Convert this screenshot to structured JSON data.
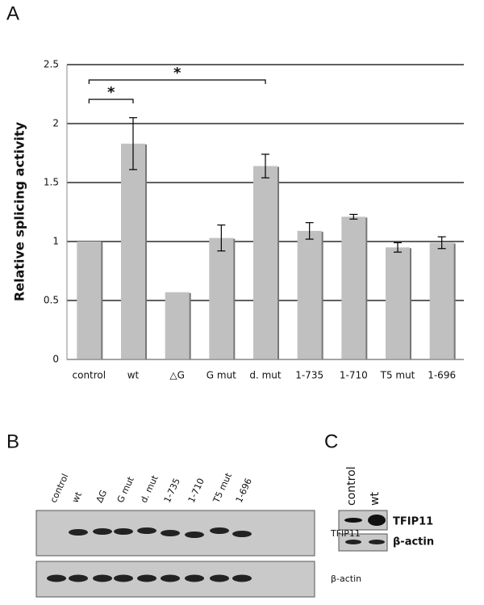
{
  "panels": [
    "A",
    "B",
    "C"
  ],
  "chart_data": {
    "type": "bar",
    "ylabel": "Relative splicing activity",
    "categories": [
      "control",
      "wt",
      "△G",
      "G mut",
      "d. mut",
      "1-735",
      "1-710",
      "T5 mut",
      "1-696"
    ],
    "values": [
      1.0,
      1.83,
      0.57,
      1.03,
      1.64,
      1.09,
      1.21,
      0.95,
      0.99
    ],
    "errors": [
      null,
      0.22,
      null,
      0.11,
      0.1,
      0.07,
      0.02,
      0.04,
      0.05
    ],
    "color": "#c0c0c0",
    "ylim": [
      0,
      2.5
    ],
    "yticks": [
      0,
      0.5,
      1,
      1.5,
      2,
      2.5
    ],
    "grid": true,
    "annotations": [
      "*",
      "*"
    ]
  },
  "blot_b": {
    "lanes": [
      "control",
      "wt",
      "ΔG",
      "G mut",
      "d. mut",
      "1-735",
      "1-710",
      "T5 mut",
      "1-696"
    ],
    "bands": [
      "TFIP11",
      "β-actin"
    ]
  },
  "blot_c": {
    "lanes": [
      "control",
      "wt"
    ],
    "bands": [
      "TFIP11",
      "β-actin"
    ]
  }
}
